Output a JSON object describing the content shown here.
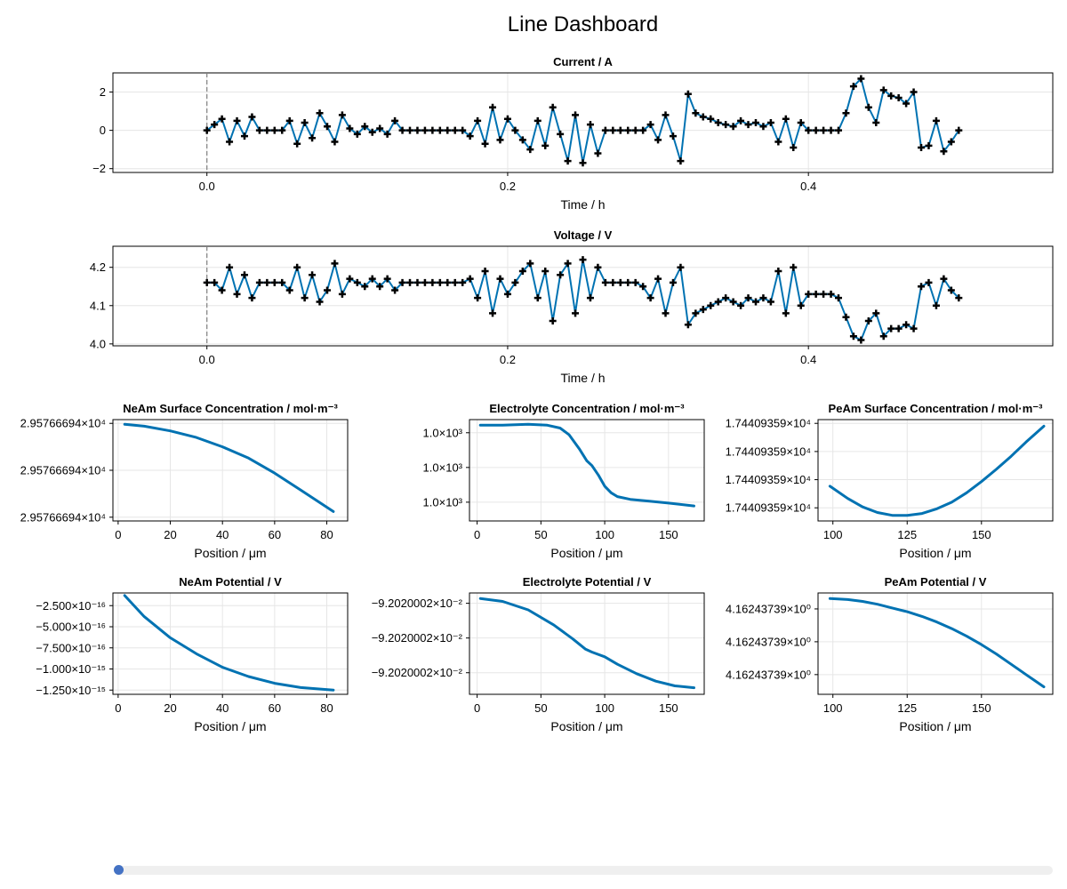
{
  "dashboard": {
    "title": "Line Dashboard",
    "slider": {
      "value": 0,
      "color": "#4472c4"
    }
  },
  "colors": {
    "line": "#0072b2",
    "marker": "#000000",
    "vline": "#808080"
  },
  "chart_data": [
    {
      "id": "current",
      "type": "line",
      "title": "Current  /  A",
      "xlabel": "Time  /  h",
      "ylabel": "",
      "xlim": [
        -0.0625,
        0.5625
      ],
      "ylim": [
        -2.2,
        3.0
      ],
      "xticks": [
        0.0,
        0.2,
        0.4
      ],
      "xtick_labels": [
        "0.0",
        "0.2",
        "0.4"
      ],
      "yticks": [
        -2,
        0,
        2
      ],
      "ytick_labels": [
        "−2",
        "0",
        "2"
      ],
      "vline_x": 0.0,
      "markers": "plus",
      "x": [
        0.0,
        0.005,
        0.01,
        0.015,
        0.02,
        0.025,
        0.03,
        0.035,
        0.04,
        0.045,
        0.05,
        0.055,
        0.06,
        0.065,
        0.07,
        0.075,
        0.08,
        0.085,
        0.09,
        0.095,
        0.1,
        0.105,
        0.11,
        0.115,
        0.12,
        0.125,
        0.13,
        0.135,
        0.14,
        0.145,
        0.15,
        0.155,
        0.16,
        0.165,
        0.17,
        0.175,
        0.18,
        0.185,
        0.19,
        0.195,
        0.2,
        0.205,
        0.21,
        0.215,
        0.22,
        0.225,
        0.23,
        0.235,
        0.24,
        0.245,
        0.25,
        0.255,
        0.26,
        0.265,
        0.27,
        0.275,
        0.28,
        0.285,
        0.29,
        0.295,
        0.3,
        0.305,
        0.31,
        0.315,
        0.32,
        0.325,
        0.33,
        0.335,
        0.34,
        0.345,
        0.35,
        0.355,
        0.36,
        0.365,
        0.37,
        0.375,
        0.38,
        0.385,
        0.39,
        0.395,
        0.4,
        0.405,
        0.41,
        0.415,
        0.42,
        0.425,
        0.43,
        0.435,
        0.44,
        0.445,
        0.45,
        0.455,
        0.46,
        0.465,
        0.47,
        0.475,
        0.48,
        0.485,
        0.49,
        0.495,
        0.5
      ],
      "y": [
        0.0,
        0.3,
        0.6,
        -0.6,
        0.5,
        -0.3,
        0.7,
        0.0,
        0.0,
        0.0,
        0.0,
        0.5,
        -0.7,
        0.4,
        -0.4,
        0.9,
        0.2,
        -0.6,
        0.8,
        0.1,
        -0.2,
        0.2,
        -0.1,
        0.1,
        -0.2,
        0.5,
        0.0,
        0.0,
        0.0,
        0.0,
        0.0,
        0.0,
        0.0,
        0.0,
        0.0,
        -0.3,
        0.5,
        -0.7,
        1.2,
        -0.5,
        0.6,
        0.0,
        -0.5,
        -1.0,
        0.5,
        -0.8,
        1.2,
        -0.2,
        -1.6,
        0.8,
        -1.7,
        0.3,
        -1.2,
        0.0,
        0.0,
        0.0,
        0.0,
        0.0,
        0.0,
        0.3,
        -0.5,
        0.8,
        -0.3,
        -1.6,
        1.9,
        0.9,
        0.7,
        0.6,
        0.4,
        0.3,
        0.2,
        0.5,
        0.3,
        0.4,
        0.2,
        0.4,
        -0.6,
        0.6,
        -0.9,
        0.4,
        0.0,
        0.0,
        0.0,
        0.0,
        0.0,
        0.9,
        2.3,
        2.7,
        1.2,
        0.4,
        2.1,
        1.8,
        1.7,
        1.4,
        2.0,
        -0.9,
        -0.8,
        0.5,
        -1.1,
        -0.6,
        0.0
      ]
    },
    {
      "id": "voltage",
      "type": "line",
      "title": "Voltage  /  V",
      "xlabel": "Time  /  h",
      "ylabel": "",
      "xlim": [
        -0.0625,
        0.5625
      ],
      "ylim": [
        3.995,
        4.255
      ],
      "xticks": [
        0.0,
        0.2,
        0.4
      ],
      "xtick_labels": [
        "0.0",
        "0.2",
        "0.4"
      ],
      "yticks": [
        4.0,
        4.1,
        4.2
      ],
      "ytick_labels": [
        "4.0",
        "4.1",
        "4.2"
      ],
      "vline_x": 0.0,
      "markers": "plus",
      "x": [
        0.0,
        0.005,
        0.01,
        0.015,
        0.02,
        0.025,
        0.03,
        0.035,
        0.04,
        0.045,
        0.05,
        0.055,
        0.06,
        0.065,
        0.07,
        0.075,
        0.08,
        0.085,
        0.09,
        0.095,
        0.1,
        0.105,
        0.11,
        0.115,
        0.12,
        0.125,
        0.13,
        0.135,
        0.14,
        0.145,
        0.15,
        0.155,
        0.16,
        0.165,
        0.17,
        0.175,
        0.18,
        0.185,
        0.19,
        0.195,
        0.2,
        0.205,
        0.21,
        0.215,
        0.22,
        0.225,
        0.23,
        0.235,
        0.24,
        0.245,
        0.25,
        0.255,
        0.26,
        0.265,
        0.27,
        0.275,
        0.28,
        0.285,
        0.29,
        0.295,
        0.3,
        0.305,
        0.31,
        0.315,
        0.32,
        0.325,
        0.33,
        0.335,
        0.34,
        0.345,
        0.35,
        0.355,
        0.36,
        0.365,
        0.37,
        0.375,
        0.38,
        0.385,
        0.39,
        0.395,
        0.4,
        0.405,
        0.41,
        0.415,
        0.42,
        0.425,
        0.43,
        0.435,
        0.44,
        0.445,
        0.45,
        0.455,
        0.46,
        0.465,
        0.47,
        0.475,
        0.48,
        0.485,
        0.49,
        0.495,
        0.5
      ],
      "y": [
        4.16,
        4.16,
        4.14,
        4.2,
        4.13,
        4.18,
        4.12,
        4.16,
        4.16,
        4.16,
        4.16,
        4.14,
        4.2,
        4.12,
        4.18,
        4.11,
        4.14,
        4.21,
        4.13,
        4.17,
        4.16,
        4.15,
        4.17,
        4.15,
        4.17,
        4.14,
        4.16,
        4.16,
        4.16,
        4.16,
        4.16,
        4.16,
        4.16,
        4.16,
        4.16,
        4.17,
        4.12,
        4.19,
        4.08,
        4.17,
        4.13,
        4.16,
        4.19,
        4.21,
        4.12,
        4.19,
        4.06,
        4.18,
        4.21,
        4.08,
        4.22,
        4.12,
        4.2,
        4.16,
        4.16,
        4.16,
        4.16,
        4.16,
        4.15,
        4.12,
        4.17,
        4.08,
        4.16,
        4.2,
        4.05,
        4.08,
        4.09,
        4.1,
        4.11,
        4.12,
        4.11,
        4.1,
        4.12,
        4.11,
        4.12,
        4.11,
        4.19,
        4.08,
        4.2,
        4.1,
        4.13,
        4.13,
        4.13,
        4.13,
        4.12,
        4.07,
        4.02,
        4.01,
        4.06,
        4.08,
        4.02,
        4.04,
        4.04,
        4.05,
        4.04,
        4.15,
        4.16,
        4.1,
        4.17,
        4.14,
        4.12
      ]
    },
    {
      "id": "neam-surf-conc",
      "type": "line",
      "title": "NeAm Surface Concentration  /  mol·m⁻³",
      "xlabel": "Position  /  μm",
      "ylabel": "",
      "xlim": [
        -2,
        88
      ],
      "ylim": [
        -0.04,
        1.04
      ],
      "xticks": [
        0,
        20,
        40,
        60,
        80
      ],
      "xtick_labels": [
        "0",
        "20",
        "40",
        "60",
        "80"
      ],
      "yticks": [
        0.0,
        0.5,
        1.0
      ],
      "ytick_labels": [
        "2.95766694×10⁴",
        "2.95766694×10⁴",
        "2.95766694×10⁴"
      ],
      "x": [
        2.5,
        10,
        20,
        30,
        40,
        50,
        60,
        70,
        82.5
      ],
      "y": [
        0.99,
        0.97,
        0.92,
        0.85,
        0.75,
        0.63,
        0.47,
        0.29,
        0.06
      ]
    },
    {
      "id": "electrolyte-conc",
      "type": "line",
      "title": "Electrolyte Concentration  /  mol·m⁻³",
      "xlabel": "Position  /  μm",
      "ylabel": "",
      "xlim": [
        -6,
        178
      ],
      "ylim": [
        -0.04,
        1.04
      ],
      "xticks": [
        0,
        50,
        100,
        150
      ],
      "xtick_labels": [
        "0",
        "50",
        "100",
        "150"
      ],
      "yticks": [
        0.16,
        0.53,
        0.9
      ],
      "ytick_labels": [
        "1.0×10³",
        "1.0×10³",
        "1.0×10³"
      ],
      "x": [
        2.5,
        20,
        40,
        55,
        65,
        72,
        80,
        86,
        90,
        95,
        100,
        105,
        110,
        120,
        135,
        150,
        170
      ],
      "y": [
        0.98,
        0.98,
        0.99,
        0.98,
        0.95,
        0.88,
        0.73,
        0.6,
        0.55,
        0.45,
        0.33,
        0.26,
        0.22,
        0.19,
        0.17,
        0.15,
        0.12
      ]
    },
    {
      "id": "peam-surf-conc",
      "type": "line",
      "title": "PeAm Surface Concentration  /  mol·m⁻³",
      "xlabel": "Position  /  μm",
      "ylabel": "",
      "xlim": [
        95,
        174
      ],
      "ylim": [
        -0.04,
        1.04
      ],
      "xticks": [
        100,
        125,
        150
      ],
      "xtick_labels": [
        "100",
        "125",
        "150"
      ],
      "yticks": [
        0.1,
        0.4,
        0.7,
        1.0
      ],
      "ytick_labels": [
        "1.74409359×10⁴",
        "1.74409359×10⁴",
        "1.74409359×10⁴",
        "1.74409359×10⁴"
      ],
      "x": [
        99,
        105,
        110,
        115,
        120,
        125,
        130,
        135,
        140,
        145,
        150,
        155,
        160,
        165,
        171
      ],
      "y": [
        0.33,
        0.2,
        0.11,
        0.05,
        0.02,
        0.02,
        0.04,
        0.09,
        0.16,
        0.26,
        0.38,
        0.51,
        0.65,
        0.8,
        0.97
      ]
    },
    {
      "id": "neam-potential",
      "type": "line",
      "title": "NeAm Potential  /  V",
      "xlabel": "Position  /  μm",
      "ylabel": "",
      "xlim": [
        -2,
        88
      ],
      "ylim": [
        -1.3e-15,
        -1e-16
      ],
      "xticks": [
        0,
        20,
        40,
        60,
        80
      ],
      "xtick_labels": [
        "0",
        "20",
        "40",
        "60",
        "80"
      ],
      "yticks": [
        -2.5e-16,
        -5e-16,
        -7.5e-16,
        -1e-15,
        -1.25e-15
      ],
      "ytick_labels": [
        "−2.500×10⁻¹⁶",
        "−5.000×10⁻¹⁶",
        "−7.500×10⁻¹⁶",
        "−1.000×10⁻¹⁵",
        "−1.250×10⁻¹⁵"
      ],
      "x": [
        2.5,
        10,
        20,
        30,
        40,
        50,
        60,
        70,
        82.5
      ],
      "y": [
        -1.3e-16,
        -3.8e-16,
        -6.3e-16,
        -8.2e-16,
        -9.8e-16,
        -1.09e-15,
        -1.17e-15,
        -1.22e-15,
        -1.25e-15
      ]
    },
    {
      "id": "electrolyte-potential",
      "type": "line",
      "title": "Electrolyte Potential  /  V",
      "xlabel": "Position  /  μm",
      "ylabel": "",
      "xlim": [
        -6,
        178
      ],
      "ylim": [
        -0.04,
        1.04
      ],
      "xticks": [
        0,
        50,
        100,
        150
      ],
      "xtick_labels": [
        "0",
        "50",
        "100",
        "150"
      ],
      "yticks": [
        0.19,
        0.56,
        0.93
      ],
      "ytick_labels": [
        "−9.2020002×10⁻²",
        "−9.2020002×10⁻²",
        "−9.2020002×10⁻²"
      ],
      "x": [
        2.5,
        20,
        40,
        60,
        75,
        85,
        90,
        100,
        110,
        125,
        140,
        155,
        170
      ],
      "y": [
        0.98,
        0.95,
        0.86,
        0.7,
        0.55,
        0.44,
        0.41,
        0.36,
        0.28,
        0.18,
        0.1,
        0.05,
        0.03
      ]
    },
    {
      "id": "peam-potential",
      "type": "line",
      "title": "PeAm Potential  /  V",
      "xlabel": "Position  /  μm",
      "ylabel": "",
      "xlim": [
        95,
        174
      ],
      "ylim": [
        -0.04,
        1.04
      ],
      "xticks": [
        100,
        125,
        150
      ],
      "xtick_labels": [
        "100",
        "125",
        "150"
      ],
      "yticks": [
        0.17,
        0.52,
        0.87
      ],
      "ytick_labels": [
        "4.16243739×10⁰",
        "4.16243739×10⁰",
        "4.16243739×10⁰"
      ],
      "x": [
        99,
        105,
        110,
        115,
        120,
        125,
        130,
        135,
        140,
        145,
        150,
        155,
        160,
        165,
        171
      ],
      "y": [
        0.98,
        0.97,
        0.95,
        0.92,
        0.88,
        0.84,
        0.79,
        0.73,
        0.66,
        0.58,
        0.49,
        0.39,
        0.28,
        0.17,
        0.04
      ]
    }
  ]
}
